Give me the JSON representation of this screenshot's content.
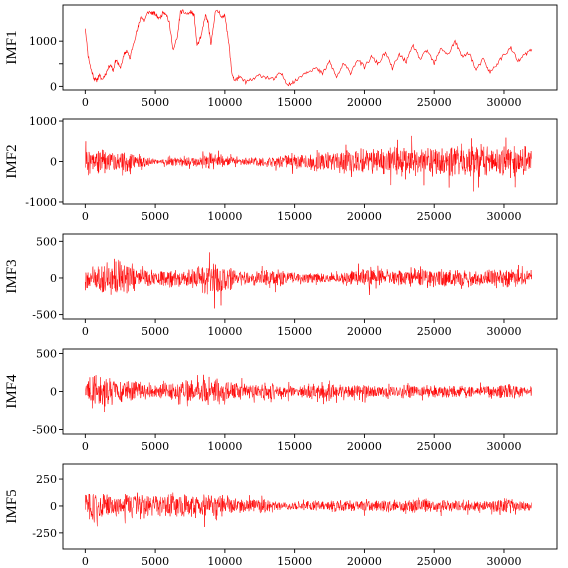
{
  "chart_data": [
    {
      "type": "line",
      "ylabel": "IMF1",
      "color": "#ff0000",
      "xlim": [
        -1600,
        33800
      ],
      "ylim": [
        -80,
        1800
      ],
      "xticks": [
        0,
        5000,
        10000,
        15000,
        20000,
        25000,
        30000
      ],
      "yticks": [
        0,
        500,
        1000
      ],
      "ytick_labels": [
        "0",
        "",
        "1000"
      ],
      "series": [
        {
          "name": "",
          "x": [
            0,
            200,
            400,
            600,
            800,
            1000,
            1200,
            1500,
            1800,
            2000,
            2200,
            2500,
            2800,
            3000,
            3200,
            3500,
            3800,
            4000,
            4200,
            4500,
            4800,
            5000,
            5300,
            5600,
            5800,
            6000,
            6300,
            6600,
            6800,
            7000,
            7300,
            7600,
            7800,
            8000,
            8300,
            8600,
            8800,
            9000,
            9300,
            9600,
            9800,
            10000,
            10300,
            10500,
            10700,
            11000,
            11500,
            12000,
            12500,
            13000,
            13500,
            14000,
            14500,
            15000,
            15500,
            16000,
            16500,
            17000,
            17500,
            18000,
            18500,
            19000,
            19500,
            20000,
            20500,
            21000,
            21500,
            22000,
            22500,
            23000,
            23500,
            24000,
            24500,
            25000,
            25500,
            26000,
            26500,
            27000,
            27500,
            28000,
            28500,
            29000,
            29500,
            30000,
            30500,
            31000,
            31500,
            32000
          ],
          "values": [
            1300,
            700,
            400,
            200,
            120,
            250,
            150,
            300,
            500,
            350,
            600,
            400,
            700,
            800,
            600,
            1000,
            1300,
            1550,
            1450,
            1650,
            1620,
            1600,
            1500,
            1650,
            1600,
            1400,
            800,
            1100,
            1640,
            1650,
            1600,
            1650,
            1550,
            900,
            1100,
            1580,
            1400,
            900,
            1650,
            1650,
            1500,
            1600,
            900,
            300,
            120,
            200,
            100,
            150,
            250,
            200,
            150,
            300,
            50,
            100,
            250,
            350,
            400,
            280,
            550,
            200,
            500,
            300,
            600,
            420,
            650,
            500,
            750,
            400,
            700,
            550,
            900,
            600,
            800,
            500,
            850,
            700,
            1000,
            650,
            750,
            350,
            600,
            300,
            500,
            700,
            850,
            550,
            700,
            820
          ]
        }
      ]
    },
    {
      "type": "line",
      "ylabel": "IMF2",
      "color": "#ff0000",
      "xlim": [
        -1600,
        33800
      ],
      "ylim": [
        -1050,
        1050
      ],
      "xticks": [
        0,
        5000,
        10000,
        15000,
        20000,
        25000,
        30000
      ],
      "yticks": [
        -1000,
        0,
        1000
      ],
      "ytick_labels": [
        "-1000",
        "0",
        "1000"
      ],
      "envelope": {
        "x": [
          0,
          500,
          1000,
          2000,
          3000,
          4000,
          5000,
          6000,
          7000,
          8000,
          9000,
          10000,
          11000,
          12000,
          13000,
          14000,
          15000,
          16000,
          17000,
          18000,
          19000,
          20000,
          21000,
          22000,
          23000,
          24000,
          25000,
          26000,
          27000,
          28000,
          29000,
          30000,
          31000,
          32000
        ],
        "amp": [
          900,
          500,
          650,
          400,
          500,
          300,
          120,
          220,
          200,
          300,
          450,
          250,
          180,
          200,
          280,
          300,
          320,
          420,
          500,
          550,
          600,
          650,
          620,
          700,
          720,
          650,
          750,
          800,
          720,
          800,
          700,
          850,
          780,
          780
        ]
      }
    },
    {
      "type": "line",
      "ylabel": "IMF3",
      "color": "#ff0000",
      "xlim": [
        -1600,
        33800
      ],
      "ylim": [
        -560,
        600
      ],
      "xticks": [
        0,
        5000,
        10000,
        15000,
        20000,
        25000,
        30000
      ],
      "yticks": [
        -500,
        0,
        500
      ],
      "ytick_labels": [
        "-500",
        "0",
        "500"
      ],
      "envelope": {
        "x": [
          0,
          500,
          1000,
          2000,
          3000,
          4000,
          5000,
          6000,
          7000,
          8000,
          9000,
          10000,
          11000,
          12000,
          13000,
          14000,
          15000,
          16000,
          17000,
          18000,
          19000,
          20000,
          21000,
          22000,
          23000,
          24000,
          25000,
          26000,
          27000,
          28000,
          29000,
          30000,
          31000,
          32000
        ],
        "amp": [
          300,
          280,
          450,
          480,
          420,
          320,
          180,
          260,
          220,
          260,
          520,
          350,
          200,
          180,
          220,
          240,
          120,
          140,
          150,
          120,
          200,
          240,
          260,
          200,
          230,
          250,
          270,
          240,
          250,
          230,
          220,
          260,
          240,
          240
        ]
      }
    },
    {
      "type": "line",
      "ylabel": "IMF4",
      "color": "#ff0000",
      "xlim": [
        -1600,
        33800
      ],
      "ylim": [
        -560,
        560
      ],
      "xticks": [
        0,
        5000,
        10000,
        15000,
        20000,
        25000,
        30000
      ],
      "yticks": [
        -500,
        0,
        500
      ],
      "ytick_labels": [
        "-500",
        "0",
        "500"
      ],
      "envelope": {
        "x": [
          0,
          500,
          1000,
          2000,
          3000,
          4000,
          5000,
          6000,
          7000,
          8000,
          9000,
          10000,
          11000,
          12000,
          13000,
          14000,
          15000,
          16000,
          17000,
          18000,
          19000,
          20000,
          21000,
          22000,
          23000,
          24000,
          25000,
          26000,
          27000,
          28000,
          29000,
          30000,
          31000,
          32000
        ],
        "amp": [
          250,
          480,
          420,
          300,
          260,
          250,
          200,
          230,
          210,
          300,
          400,
          280,
          220,
          200,
          240,
          160,
          140,
          200,
          230,
          170,
          160,
          180,
          170,
          150,
          180,
          160,
          170,
          150,
          160,
          170,
          150,
          200,
          160,
          150
        ]
      }
    },
    {
      "type": "line",
      "ylabel": "IMF5",
      "color": "#ff0000",
      "xlim": [
        -1600,
        33800
      ],
      "ylim": [
        -400,
        390
      ],
      "xticks": [
        0,
        5000,
        10000,
        15000,
        20000,
        25000,
        30000
      ],
      "yticks": [
        -250,
        0,
        250
      ],
      "ytick_labels": [
        "-250",
        "0",
        "250"
      ],
      "envelope": {
        "x": [
          0,
          500,
          1000,
          2000,
          3000,
          4000,
          5000,
          6000,
          7000,
          8000,
          9000,
          10000,
          11000,
          12000,
          13000,
          14000,
          15000,
          16000,
          17000,
          18000,
          19000,
          20000,
          21000,
          22000,
          23000,
          24000,
          25000,
          26000,
          27000,
          28000,
          29000,
          30000,
          31000,
          32000
        ],
        "amp": [
          260,
          320,
          280,
          240,
          220,
          200,
          180,
          260,
          200,
          220,
          240,
          180,
          120,
          140,
          130,
          60,
          80,
          100,
          90,
          110,
          100,
          120,
          110,
          100,
          120,
          130,
          100,
          110,
          120,
          100,
          90,
          180,
          100,
          80
        ]
      }
    }
  ]
}
